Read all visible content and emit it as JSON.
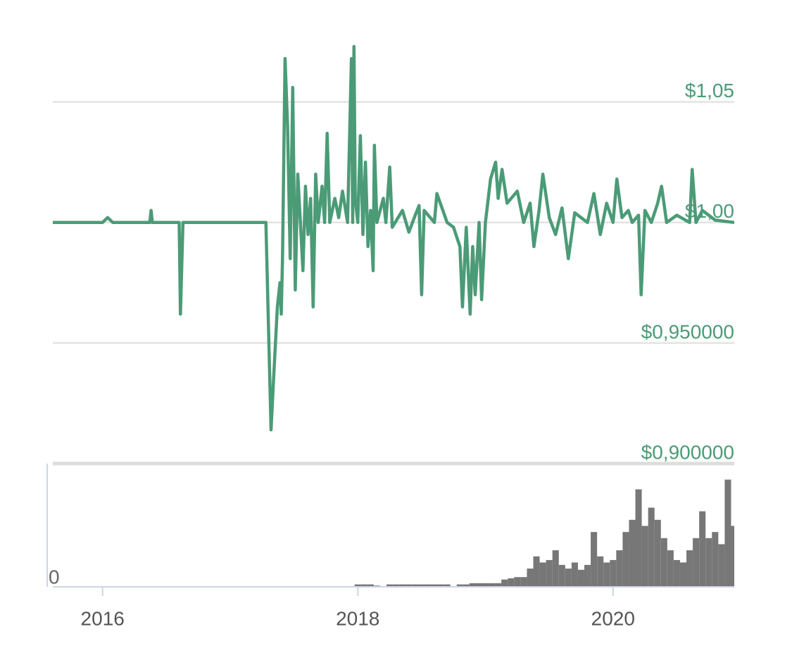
{
  "chart_data": [
    {
      "type": "line",
      "color": "#4b9b77",
      "grid": true,
      "xlim": [
        2015.61,
        2020.95
      ],
      "ylim": [
        0.9,
        1.08
      ],
      "yticks": [
        {
          "value": 1.05,
          "label": "$1,05"
        },
        {
          "value": 1.0,
          "label": "$1,00"
        },
        {
          "value": 0.95,
          "label": "$0,950000"
        },
        {
          "value": 0.9,
          "label": "$0,900000"
        }
      ],
      "x": [
        2015.61,
        2015.9,
        2016.0,
        2016.04,
        2016.08,
        2016.37,
        2016.38,
        2016.39,
        2016.6,
        2016.61,
        2016.63,
        2017.0,
        2017.28,
        2017.32,
        2017.34,
        2017.37,
        2017.39,
        2017.4,
        2017.41,
        2017.43,
        2017.45,
        2017.47,
        2017.48,
        2017.49,
        2017.51,
        2017.53,
        2017.55,
        2017.57,
        2017.59,
        2017.61,
        2017.63,
        2017.65,
        2017.67,
        2017.69,
        2017.72,
        2017.74,
        2017.76,
        2017.78,
        2017.82,
        2017.85,
        2017.88,
        2017.92,
        2017.95,
        2017.96,
        2017.97,
        2017.98,
        2018.0,
        2018.02,
        2018.04,
        2018.06,
        2018.08,
        2018.1,
        2018.12,
        2018.13,
        2018.15,
        2018.2,
        2018.22,
        2018.25,
        2018.27,
        2018.35,
        2018.4,
        2018.45,
        2018.48,
        2018.5,
        2018.52,
        2018.6,
        2018.62,
        2018.7,
        2018.75,
        2018.8,
        2018.82,
        2018.85,
        2018.88,
        2018.9,
        2018.92,
        2018.95,
        2018.97,
        2019.0,
        2019.04,
        2019.08,
        2019.1,
        2019.13,
        2019.17,
        2019.25,
        2019.3,
        2019.35,
        2019.38,
        2019.42,
        2019.45,
        2019.5,
        2019.55,
        2019.6,
        2019.65,
        2019.7,
        2019.8,
        2019.85,
        2019.9,
        2019.95,
        2020.0,
        2020.03,
        2020.07,
        2020.12,
        2020.15,
        2020.2,
        2020.22,
        2020.25,
        2020.3,
        2020.35,
        2020.38,
        2020.42,
        2020.5,
        2020.6,
        2020.62,
        2020.65,
        2020.7,
        2020.8,
        2020.95
      ],
      "values": [
        1.0,
        1.0,
        1.0,
        1.002,
        1.0,
        1.0,
        1.005,
        1.0,
        1.0,
        0.962,
        1.0,
        1.0,
        1.0,
        0.914,
        0.935,
        0.965,
        0.975,
        0.962,
        0.985,
        1.068,
        1.04,
        0.985,
        1.02,
        1.056,
        0.972,
        1.02,
        1.0,
        0.98,
        1.015,
        0.995,
        1.01,
        0.965,
        1.02,
        1.0,
        1.015,
        1.0,
        1.037,
        1.0,
        1.01,
        1.002,
        1.013,
        1.0,
        1.068,
        1.0,
        1.073,
        1.01,
        1.0,
        1.036,
        0.995,
        1.025,
        0.99,
        1.005,
        0.98,
        1.032,
        1.0,
        1.01,
        1.0,
        1.023,
        0.998,
        1.005,
        0.996,
        1.003,
        1.007,
        0.97,
        1.005,
        1.0,
        1.012,
        1.0,
        0.998,
        0.99,
        0.965,
        0.998,
        0.962,
        0.99,
        0.97,
        1.0,
        0.968,
        1.0,
        1.018,
        1.025,
        1.01,
        1.022,
        1.008,
        1.013,
        1.0,
        1.008,
        0.99,
        1.005,
        1.02,
        1.002,
        0.995,
        1.006,
        0.985,
        1.004,
        1.0,
        1.012,
        0.995,
        1.008,
        1.0,
        1.018,
        1.002,
        1.005,
        1.0,
        1.003,
        0.97,
        1.005,
        1.0,
        1.008,
        1.015,
        1.0,
        1.003,
        1.0,
        1.022,
        1.0,
        1.005,
        1.001,
        1.0
      ]
    },
    {
      "type": "bar",
      "color": "#777777",
      "xlim": [
        2015.61,
        2020.95
      ],
      "xticks": [
        2016,
        2018,
        2020
      ],
      "ylim": [
        0,
        100
      ],
      "yticks": [
        0
      ],
      "x": [
        2018.0,
        2018.05,
        2018.1,
        2018.15,
        2018.2,
        2018.25,
        2018.3,
        2018.35,
        2018.4,
        2018.45,
        2018.5,
        2018.55,
        2018.6,
        2018.65,
        2018.7,
        2018.75,
        2018.8,
        2018.85,
        2018.9,
        2018.95,
        2019.0,
        2019.05,
        2019.1,
        2019.15,
        2019.2,
        2019.25,
        2019.3,
        2019.35,
        2019.4,
        2019.45,
        2019.5,
        2019.55,
        2019.6,
        2019.65,
        2019.7,
        2019.75,
        2019.8,
        2019.85,
        2019.9,
        2019.95,
        2020.0,
        2020.05,
        2020.1,
        2020.15,
        2020.2,
        2020.25,
        2020.3,
        2020.35,
        2020.4,
        2020.45,
        2020.5,
        2020.55,
        2020.6,
        2020.65,
        2020.7,
        2020.75,
        2020.8,
        2020.85,
        2020.9,
        2020.95
      ],
      "values": [
        2,
        2,
        2,
        1,
        0,
        2,
        2,
        2,
        2,
        2,
        2,
        2,
        2,
        2,
        2,
        0,
        2,
        2,
        3,
        3,
        3,
        3,
        3,
        6,
        7,
        8,
        8,
        15,
        25,
        20,
        22,
        30,
        18,
        15,
        20,
        14,
        18,
        45,
        25,
        20,
        22,
        30,
        45,
        55,
        80,
        50,
        65,
        55,
        40,
        30,
        22,
        20,
        30,
        40,
        62,
        40,
        45,
        35,
        88,
        50
      ]
    }
  ]
}
